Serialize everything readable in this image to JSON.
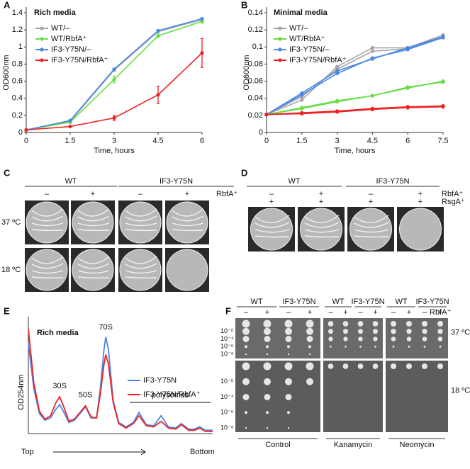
{
  "chart_data": [
    {
      "type": "line",
      "panel": "A",
      "title": "Rich media",
      "x_label": "Time, hours",
      "y_label": "OD600nm",
      "x": [
        0,
        1.5,
        3,
        4.5,
        6
      ],
      "xlim": [
        0,
        6
      ],
      "xticks": [
        0,
        1.5,
        3,
        4.5,
        6
      ],
      "ylim": [
        0,
        1.4
      ],
      "yticks": [
        0,
        0.2,
        0.4,
        0.6,
        0.8,
        1,
        1.2,
        1.4
      ],
      "series": [
        {
          "name": "WT/–",
          "color": "#a6a6a6",
          "values": [
            0.03,
            0.13,
            0.73,
            1.18,
            1.32
          ]
        },
        {
          "name": "WT/RbfA⁺",
          "color": "#66dd44",
          "values": [
            0.03,
            0.12,
            0.62,
            1.13,
            1.3
          ],
          "errors": [
            0,
            0.01,
            0.04,
            0.02,
            0.02
          ]
        },
        {
          "name": "IF3-Y75N/–",
          "color": "#4a86e8",
          "values": [
            0.03,
            0.14,
            0.74,
            1.19,
            1.33
          ]
        },
        {
          "name": "IF3-Y75N/RbfA⁺",
          "color": "#ee2222",
          "values": [
            0.03,
            0.07,
            0.17,
            0.44,
            0.93
          ],
          "errors": [
            0,
            0.01,
            0.03,
            0.1,
            0.17
          ]
        }
      ]
    },
    {
      "type": "line",
      "panel": "B",
      "title": "Minimal media",
      "x_label": "Time, hours",
      "y_label": "OD600nm",
      "x": [
        0,
        1.5,
        3,
        4.5,
        6,
        7.5
      ],
      "xlim": [
        0,
        7.5
      ],
      "xticks": [
        0,
        1.5,
        3,
        4.5,
        6,
        7.5
      ],
      "ylim": [
        0,
        0.14
      ],
      "yticks": [
        0,
        0.02,
        0.04,
        0.06,
        0.08,
        0.1,
        0.12,
        0.14
      ],
      "series": [
        {
          "name": "WT/–",
          "color": "#a6a6a6",
          "replicates": [
            [
              0.021,
              0.038,
              0.077,
              0.099,
              0.099,
              0.114
            ],
            [
              0.021,
              0.042,
              0.074,
              0.095,
              0.098,
              0.112
            ]
          ]
        },
        {
          "name": "WT/RbfA⁺",
          "color": "#66dd44",
          "replicates": [
            [
              0.021,
              0.029,
              0.037,
              0.043,
              0.052,
              0.06
            ],
            [
              0.021,
              0.028,
              0.036,
              0.043,
              0.053,
              0.059
            ]
          ]
        },
        {
          "name": "IF3-Y75N/–",
          "color": "#4a86e8",
          "replicates": [
            [
              0.021,
              0.046,
              0.072,
              0.086,
              0.099,
              0.112
            ],
            [
              0.021,
              0.044,
              0.069,
              0.087,
              0.097,
              0.111
            ]
          ]
        },
        {
          "name": "IF3-Y75N/RbfA⁺",
          "color": "#ee2222",
          "replicates": [
            [
              0.021,
              0.023,
              0.025,
              0.028,
              0.03,
              0.031
            ],
            [
              0.021,
              0.022,
              0.024,
              0.027,
              0.029,
              0.03
            ]
          ]
        }
      ]
    },
    {
      "type": "line",
      "panel": "E",
      "title": "Rich media",
      "y_label": "OD254nm",
      "x_labels": [
        "Top",
        "Bottom"
      ],
      "peak_labels": [
        "30S",
        "50S",
        "70S"
      ],
      "polysomes_label": "polysomes",
      "xlim": [
        0,
        100
      ],
      "ylim": [
        0,
        100
      ],
      "x": [
        0,
        3,
        6,
        9,
        12,
        15,
        17,
        19,
        22,
        25,
        28,
        31,
        34,
        37,
        39,
        41,
        42,
        43.5,
        46,
        49,
        53,
        57,
        60,
        64,
        68,
        72,
        76,
        80,
        83,
        87,
        90,
        93,
        96,
        100
      ],
      "series": [
        {
          "name": "IF3-Y75N",
          "color": "#4a86e8",
          "values": [
            81,
            40,
            18,
            12,
            14,
            22,
            26,
            20,
            10,
            12,
            18,
            24,
            14,
            14,
            40,
            75,
            87,
            75,
            30,
            10,
            6,
            10,
            19,
            8,
            7,
            16,
            6,
            5,
            9,
            4,
            4,
            6,
            3,
            3
          ]
        },
        {
          "name": "IF3-Y75N/RbfA⁺",
          "color": "#ee2222",
          "values": [
            94,
            45,
            20,
            13,
            16,
            28,
            33,
            25,
            11,
            13,
            19,
            25,
            15,
            14,
            35,
            62,
            71,
            62,
            28,
            9,
            5,
            9,
            16,
            7,
            6,
            11,
            5,
            4,
            8,
            3,
            3,
            5,
            2,
            2
          ]
        }
      ]
    }
  ],
  "panel_c": {
    "label": "C",
    "strains": [
      "WT",
      "IF3-Y75N"
    ],
    "signs": [
      "–",
      "+",
      "–",
      "+"
    ],
    "factor": "RbfA⁺",
    "temps": [
      "37 ºC",
      "18 ºC"
    ]
  },
  "panel_d": {
    "label": "D",
    "strains": [
      "WT",
      "IF3-Y75N"
    ],
    "factors": [
      "RbfA⁺",
      "RsgA⁺"
    ],
    "signs": [
      [
        "–",
        "+",
        "–",
        "+"
      ],
      [
        "+",
        "+",
        "+",
        "+"
      ]
    ]
  },
  "panel_f": {
    "label": "F",
    "strains": [
      "WT",
      "IF3-Y75N",
      "WT",
      "IF3-Y75N",
      "WT",
      "IF3-Y75N"
    ],
    "signs": [
      "–",
      "+",
      "–",
      "+",
      "–",
      "+",
      "–",
      "+",
      "–",
      "+",
      "–",
      "+"
    ],
    "factor": "RbfA⁺",
    "dilutions": [
      "10⁻²",
      "10⁻⁴",
      "10⁻⁶",
      "10⁻⁸"
    ],
    "temps": [
      "37 ºC",
      "18 ºC"
    ],
    "media": [
      "Control",
      "Kanamycin",
      "Neomycin"
    ]
  }
}
